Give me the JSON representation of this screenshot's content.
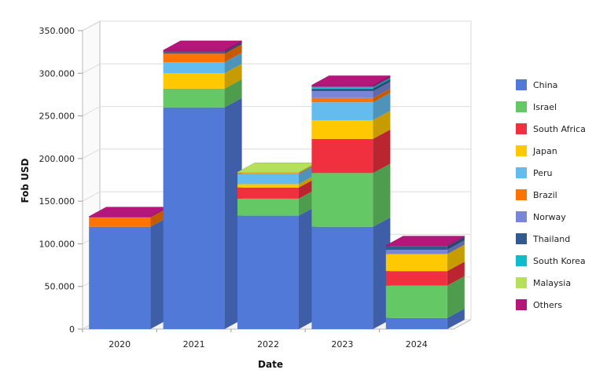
{
  "chart_data": {
    "type": "bar",
    "stacked": true,
    "three_d": true,
    "xlabel": "Date",
    "ylabel": "Fob USD",
    "categories": [
      "2020",
      "2021",
      "2022",
      "2023",
      "2024"
    ],
    "ylim": [
      0,
      350000
    ],
    "yticks": [
      0,
      50000,
      100000,
      150000,
      200000,
      250000,
      300000,
      350000
    ],
    "ytick_labels": [
      "0",
      "50.000",
      "100.000",
      "150.000",
      "200.000",
      "250.000",
      "300.000",
      "350.000"
    ],
    "grid": true,
    "legend_position": "right",
    "series": [
      {
        "name": "China",
        "color": "#5079D8",
        "values": [
          120000,
          260000,
          133000,
          120000,
          13000
        ]
      },
      {
        "name": "Israel",
        "color": "#64C864",
        "values": [
          0,
          22000,
          20000,
          63000,
          38000
        ]
      },
      {
        "name": "South Africa",
        "color": "#F0303E",
        "values": [
          0,
          0,
          13000,
          40000,
          17000
        ]
      },
      {
        "name": "Japan",
        "color": "#FFC800",
        "values": [
          0,
          18000,
          4000,
          22000,
          20000
        ]
      },
      {
        "name": "Peru",
        "color": "#64BCEE",
        "values": [
          0,
          13000,
          12000,
          21000,
          0
        ]
      },
      {
        "name": "Brazil",
        "color": "#FF7300",
        "values": [
          11000,
          10000,
          1000,
          5000,
          0
        ]
      },
      {
        "name": "Norway",
        "color": "#7886D8",
        "values": [
          0,
          0,
          0,
          8000,
          5000
        ]
      },
      {
        "name": "Thailand",
        "color": "#325A91",
        "values": [
          0,
          2000,
          0,
          3000,
          4000
        ]
      },
      {
        "name": "South Korea",
        "color": "#10BCCC",
        "values": [
          0,
          0,
          0,
          2000,
          0
        ]
      },
      {
        "name": "Malaysia",
        "color": "#B4E05A",
        "values": [
          0,
          0,
          1000,
          0,
          0
        ]
      },
      {
        "name": "Others",
        "color": "#B4167A",
        "values": [
          1000,
          2000,
          0,
          2000,
          1000
        ]
      }
    ]
  }
}
